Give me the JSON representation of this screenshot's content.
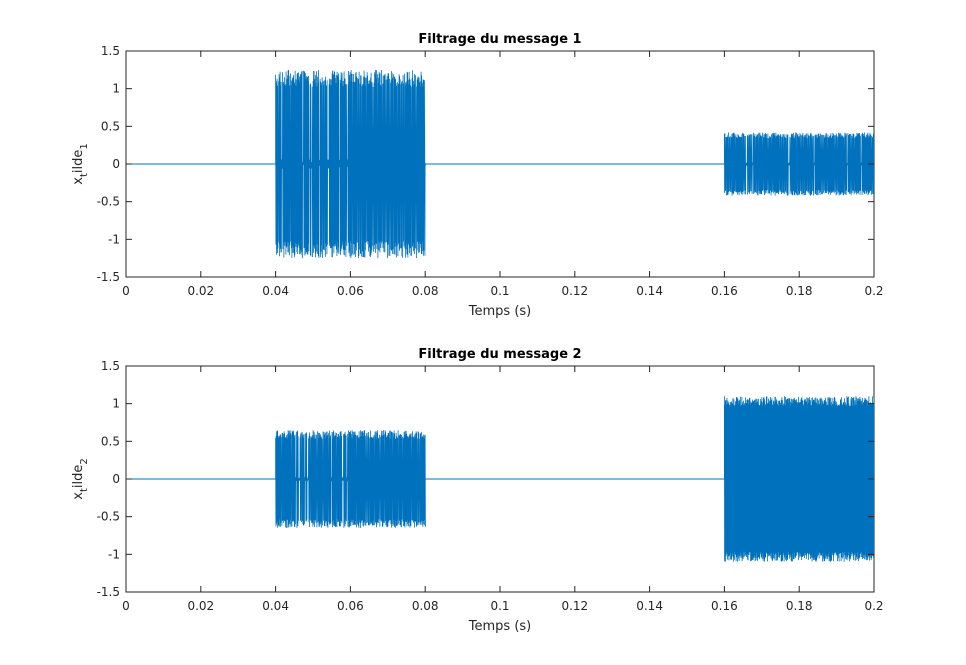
{
  "chart_data": [
    {
      "type": "line",
      "title": "Filtrage du message 1",
      "xlabel": "Temps (s)",
      "ylabel": {
        "base": "x",
        "sub1": "t",
        "mid": "ilde",
        "sub2": "1"
      },
      "xlim": [
        0,
        0.2
      ],
      "ylim": [
        -1.5,
        1.5
      ],
      "xticks": [
        0,
        0.02,
        0.04,
        0.06,
        0.08,
        0.1,
        0.12,
        0.14,
        0.16,
        0.18,
        0.2
      ],
      "xtick_labels": [
        "0",
        "0.02",
        "0.04",
        "0.06",
        "0.08",
        "0.1",
        "0.12",
        "0.14",
        "0.16",
        "0.18",
        "0.2"
      ],
      "yticks": [
        -1.5,
        -1,
        -0.5,
        0,
        0.5,
        1,
        1.5
      ],
      "ytick_labels": [
        "-1.5",
        "-1",
        "-0.5",
        "0",
        "0.5",
        "1",
        "1.5"
      ],
      "grid": false,
      "color": "#0072bd",
      "series": [
        {
          "segments": [
            {
              "x": [
                0,
                0.04
              ],
              "envelope": 0,
              "kind": "flat"
            },
            {
              "x": [
                0.04,
                0.08
              ],
              "envelope": 1.25,
              "kind": "burst"
            },
            {
              "x": [
                0.08,
                0.16
              ],
              "envelope": 0,
              "kind": "flat"
            },
            {
              "x": [
                0.16,
                0.2
              ],
              "envelope": 0.42,
              "kind": "burst"
            }
          ]
        }
      ]
    },
    {
      "type": "line",
      "title": "Filtrage du message 2",
      "xlabel": "Temps (s)",
      "ylabel": {
        "base": "x",
        "sub1": "t",
        "mid": "ilde",
        "sub2": "2"
      },
      "xlim": [
        0,
        0.2
      ],
      "ylim": [
        -1.5,
        1.5
      ],
      "xticks": [
        0,
        0.02,
        0.04,
        0.06,
        0.08,
        0.1,
        0.12,
        0.14,
        0.16,
        0.18,
        0.2
      ],
      "xtick_labels": [
        "0",
        "0.02",
        "0.04",
        "0.06",
        "0.08",
        "0.1",
        "0.12",
        "0.14",
        "0.16",
        "0.18",
        "0.2"
      ],
      "yticks": [
        -1.5,
        -1,
        -0.5,
        0,
        0.5,
        1,
        1.5
      ],
      "ytick_labels": [
        "-1.5",
        "-1",
        "-0.5",
        "0",
        "0.5",
        "1",
        "1.5"
      ],
      "grid": false,
      "color": "#0072bd",
      "series": [
        {
          "segments": [
            {
              "x": [
                0,
                0.04
              ],
              "envelope": 0,
              "kind": "flat"
            },
            {
              "x": [
                0.04,
                0.08
              ],
              "envelope": 0.65,
              "kind": "burst"
            },
            {
              "x": [
                0.08,
                0.16
              ],
              "envelope": 0,
              "kind": "flat"
            },
            {
              "x": [
                0.16,
                0.2
              ],
              "envelope": 1.1,
              "kind": "dense"
            }
          ]
        }
      ]
    }
  ]
}
